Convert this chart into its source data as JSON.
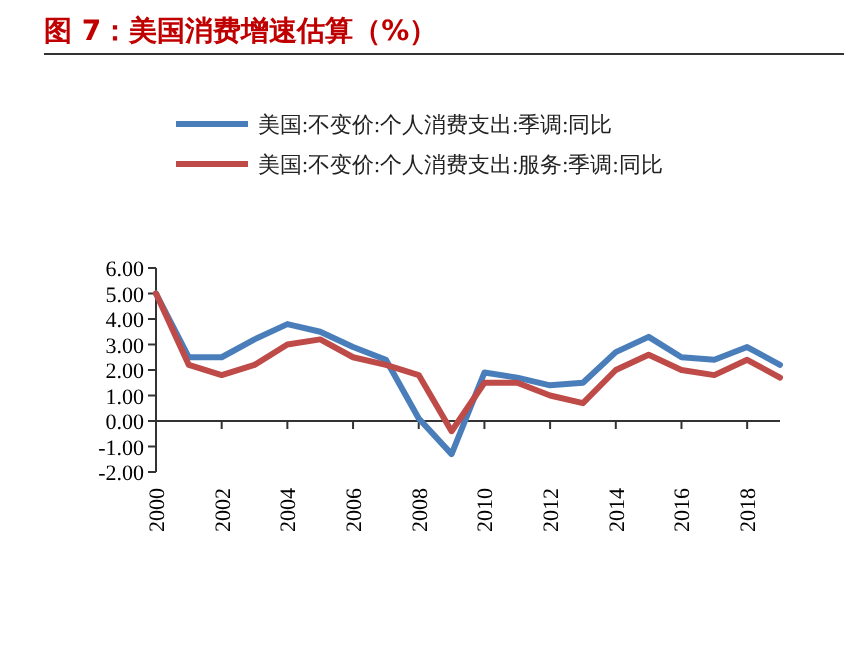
{
  "chart_data": {
    "type": "line",
    "title": "图 7：美国消费增速估算（%）",
    "x": [
      2000,
      2001,
      2002,
      2003,
      2004,
      2005,
      2006,
      2007,
      2008,
      2009,
      2010,
      2011,
      2012,
      2013,
      2014,
      2015,
      2016,
      2017,
      2018,
      2019
    ],
    "series": [
      {
        "name": "美国:不变价:个人消费支出:季调:同比",
        "color": "#4a7ebb",
        "values": [
          5.0,
          2.5,
          2.5,
          3.2,
          3.8,
          3.5,
          2.9,
          2.4,
          0.1,
          -1.3,
          1.9,
          1.7,
          1.4,
          1.5,
          2.7,
          3.3,
          2.5,
          2.4,
          2.9,
          2.2
        ]
      },
      {
        "name": "美国:不变价:个人消费支出:服务:季调:同比",
        "color": "#be4b48",
        "values": [
          5.0,
          2.2,
          1.8,
          2.2,
          3.0,
          3.2,
          2.5,
          2.2,
          1.8,
          -0.4,
          1.5,
          1.5,
          1.0,
          0.7,
          2.0,
          2.6,
          2.0,
          1.8,
          2.4,
          1.7
        ]
      }
    ],
    "xlim": [
      2000,
      2019
    ],
    "xticks": [
      2000,
      2002,
      2004,
      2006,
      2008,
      2010,
      2012,
      2014,
      2016,
      2018
    ],
    "ylim": [
      -2,
      6
    ],
    "yticks": [
      {
        "value": 6,
        "label": "6.00"
      },
      {
        "value": 5,
        "label": "5.00"
      },
      {
        "value": 4,
        "label": "4.00"
      },
      {
        "value": 3,
        "label": "3.00"
      },
      {
        "value": 2,
        "label": "2.00"
      },
      {
        "value": 1,
        "label": "1.00"
      },
      {
        "value": 0,
        "label": "0.00"
      },
      {
        "value": -1,
        "label": "-1.00"
      },
      {
        "value": -2,
        "label": "-2.00"
      }
    ],
    "legend": "top",
    "marker": "none",
    "line_style": "solid"
  }
}
